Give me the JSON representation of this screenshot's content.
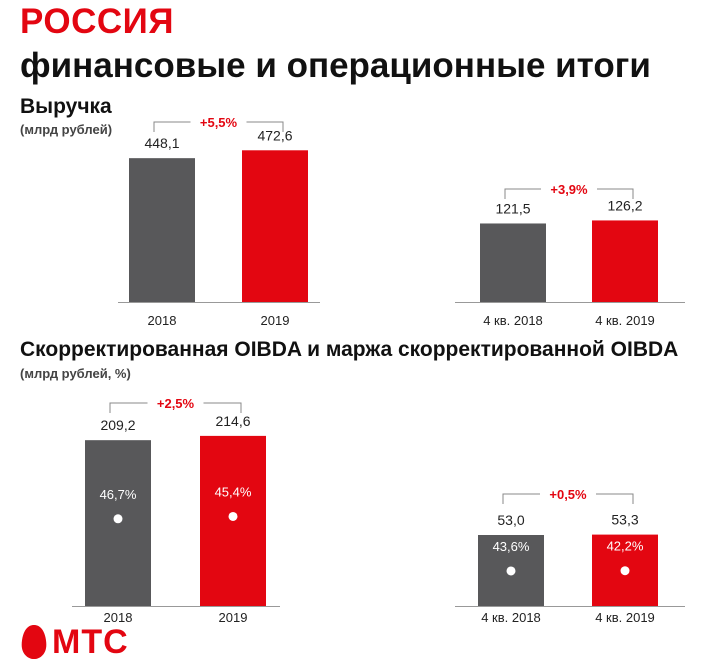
{
  "header": {
    "country": "РОССИЯ",
    "title": "финансовые и операционные итоги"
  },
  "sections": [
    {
      "title": "Выручка",
      "unit": "(млрд рублей)"
    },
    {
      "title": "Скорректированная OIBDA и маржа скорректированной OIBDA",
      "unit": "(млрд рублей, %)"
    }
  ],
  "colors": {
    "prev": "#58585a",
    "curr": "#e30611",
    "accent": "#e30611"
  },
  "chart_data": [
    {
      "type": "bar",
      "categories": [
        "2018",
        "2019"
      ],
      "values": [
        448.1,
        472.6
      ],
      "value_labels": [
        "448,1",
        "472,6"
      ],
      "change_label": "+5,5%"
    },
    {
      "type": "bar",
      "categories": [
        "4 кв. 2018",
        "4 кв. 2019"
      ],
      "values": [
        121.5,
        126.2
      ],
      "value_labels": [
        "121,5",
        "126,2"
      ],
      "change_label": "+3,9%"
    },
    {
      "type": "bar",
      "categories": [
        "2018",
        "2019"
      ],
      "values": [
        209.2,
        214.6
      ],
      "value_labels": [
        "209,2",
        "214,6"
      ],
      "margins": [
        "46,7%",
        "45,4%"
      ],
      "change_label": "+2,5%"
    },
    {
      "type": "bar",
      "categories": [
        "4 кв. 2018",
        "4 кв. 2019"
      ],
      "values": [
        53.0,
        53.3
      ],
      "value_labels": [
        "53,0",
        "53,3"
      ],
      "margins": [
        "43,6%",
        "42,2%"
      ],
      "change_label": "+0,5%"
    }
  ],
  "logo": {
    "text": "МТС"
  }
}
